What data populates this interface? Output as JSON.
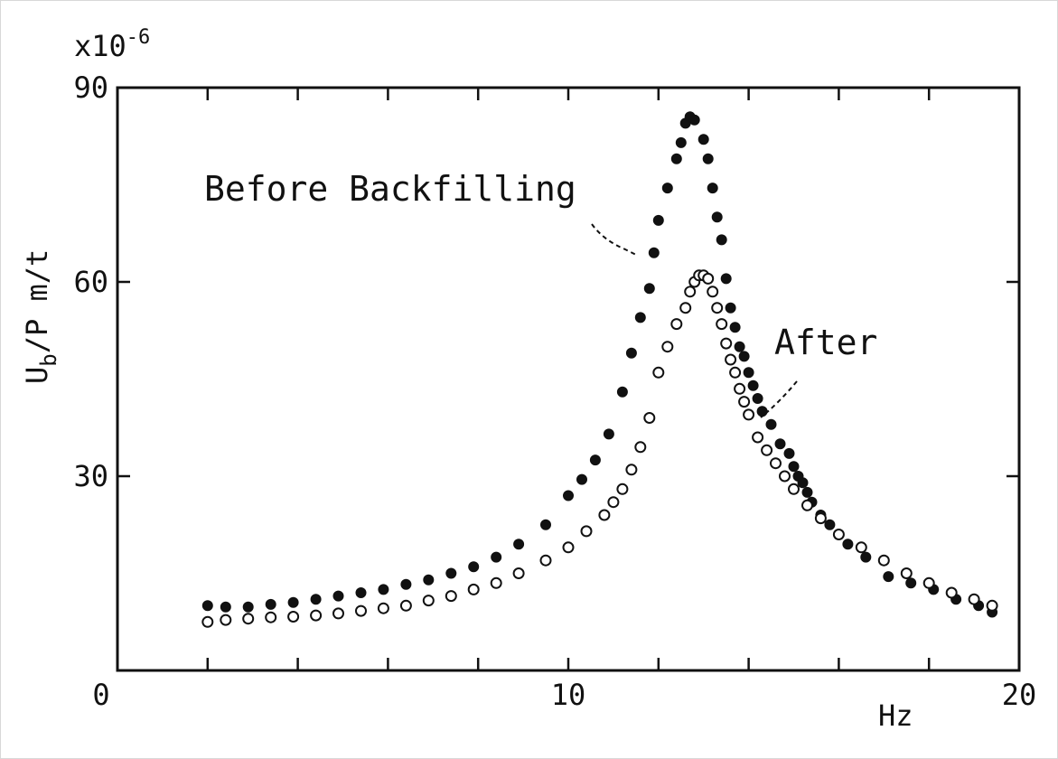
{
  "chart_data": {
    "type": "scatter",
    "title": "",
    "xlabel": "Hz",
    "ylabel": "U",
    "ylabel_sub": "b",
    "ylabel_rest": "/P  m/t",
    "exponent_label": "x10",
    "exponent_power": "-6",
    "xlim": [
      0,
      20
    ],
    "ylim": [
      0,
      90
    ],
    "x_ticks": [
      0,
      10,
      20
    ],
    "y_ticks": [
      0,
      30,
      60,
      90
    ],
    "x_tick_labels": [
      "0",
      "10",
      "20"
    ],
    "y_tick_labels": [
      "30",
      "60",
      "90"
    ],
    "minor_x_ticks": [
      2,
      4,
      6,
      8,
      12,
      14,
      16,
      18
    ],
    "grid": false,
    "legend": "none",
    "annotations": [
      {
        "text": "Before Backfilling",
        "series": "Before Backfilling"
      },
      {
        "text": "After",
        "series": "After"
      }
    ],
    "series": [
      {
        "name": "Before Backfilling",
        "marker": "filled-circle",
        "color": "#111111",
        "x": [
          2.0,
          2.4,
          2.9,
          3.4,
          3.9,
          4.4,
          4.9,
          5.4,
          5.9,
          6.4,
          6.9,
          7.4,
          7.9,
          8.4,
          8.9,
          9.5,
          10.0,
          10.3,
          10.6,
          10.9,
          11.2,
          11.4,
          11.6,
          11.8,
          11.9,
          12.0,
          12.2,
          12.4,
          12.5,
          12.6,
          12.7,
          12.8,
          13.0,
          13.1,
          13.2,
          13.3,
          13.4,
          13.5,
          13.6,
          13.7,
          13.8,
          13.9,
          14.0,
          14.1,
          14.2,
          14.3,
          14.5,
          14.7,
          14.9,
          15.0,
          15.1,
          15.2,
          15.3,
          15.4,
          15.6,
          15.8,
          16.0,
          16.2,
          16.6,
          17.1,
          17.6,
          18.1,
          18.6,
          19.1,
          19.4
        ],
        "y": [
          10,
          9.8,
          9.8,
          10.2,
          10.5,
          11,
          11.5,
          12,
          12.5,
          13.3,
          14,
          15,
          16,
          17.5,
          19.5,
          22.5,
          27,
          29.5,
          32.5,
          36.5,
          43,
          49,
          54.5,
          59,
          64.5,
          69.5,
          74.5,
          79,
          81.5,
          84.5,
          85.5,
          85,
          82,
          79,
          74.5,
          70,
          66.5,
          60.5,
          56,
          53,
          50,
          48.5,
          46,
          44,
          42,
          40,
          38,
          35,
          33.5,
          31.5,
          30,
          29,
          27.5,
          26,
          24,
          22.5,
          21,
          19.5,
          17.5,
          14.5,
          13.5,
          12.5,
          11,
          10,
          9
        ]
      },
      {
        "name": "After",
        "marker": "open-circle",
        "color": "#111111",
        "x": [
          2.0,
          2.4,
          2.9,
          3.4,
          3.9,
          4.4,
          4.9,
          5.4,
          5.9,
          6.4,
          6.9,
          7.4,
          7.9,
          8.4,
          8.9,
          9.5,
          10.0,
          10.4,
          10.8,
          11.0,
          11.2,
          11.4,
          11.6,
          11.8,
          12.0,
          12.2,
          12.4,
          12.6,
          12.7,
          12.8,
          12.9,
          13.0,
          13.1,
          13.2,
          13.3,
          13.4,
          13.5,
          13.6,
          13.7,
          13.8,
          13.9,
          14.0,
          14.2,
          14.4,
          14.6,
          14.8,
          15.0,
          15.3,
          15.6,
          16.0,
          16.5,
          17.0,
          17.5,
          18.0,
          18.5,
          19.0,
          19.4
        ],
        "y": [
          7.5,
          7.8,
          8.0,
          8.2,
          8.3,
          8.5,
          8.8,
          9.2,
          9.6,
          10,
          10.8,
          11.5,
          12.5,
          13.5,
          15,
          17,
          19,
          21.5,
          24,
          26,
          28,
          31,
          34.5,
          39,
          46,
          50,
          53.5,
          56,
          58.5,
          60,
          61,
          61,
          60.5,
          58.5,
          56,
          53.5,
          50.5,
          48,
          46,
          43.5,
          41.5,
          39.5,
          36,
          34,
          32,
          30,
          28,
          25.5,
          23.5,
          21,
          19,
          17,
          15,
          13.5,
          12,
          11,
          10
        ]
      }
    ]
  }
}
